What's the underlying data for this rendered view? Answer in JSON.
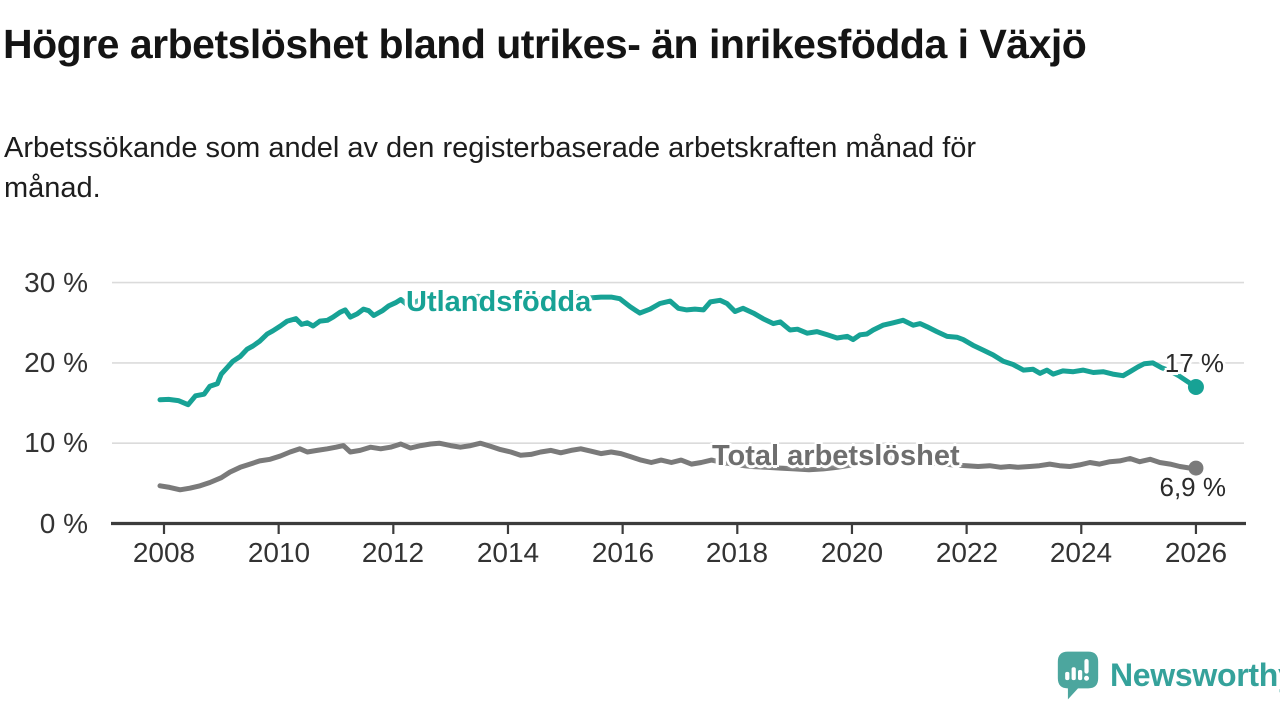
{
  "header": {
    "title": "Högre arbetslöshet bland utrikes- än inrikesfödda i Växjö",
    "subtitle": "Arbetssökande som andel av den registerbaserade arbetskraften månad för\nmånad."
  },
  "chart_data": {
    "type": "line",
    "title": "Högre arbetslöshet bland utrikes- än inrikesfödda i Växjö",
    "subtitle": "Arbetssökande som andel av den registerbaserade arbetskraften månad för månad.",
    "xlabel": "",
    "ylabel": "",
    "ylim": [
      0,
      30
    ],
    "xlim": [
      2007.1,
      2026.85
    ],
    "grid": true,
    "legend_position": "inline-labels",
    "y_ticks": {
      "values": [
        30,
        20,
        10,
        0
      ],
      "labels": [
        "30 %",
        "20 %",
        "10 %",
        "0 %"
      ]
    },
    "x_ticks": {
      "values": [
        2008,
        2010,
        2012,
        2014,
        2016,
        2018,
        2020,
        2022,
        2024,
        2026
      ],
      "labels": [
        "2008",
        "2010",
        "2012",
        "2014",
        "2016",
        "2018",
        "2020",
        "2022",
        "2024",
        "2026"
      ]
    },
    "series": [
      {
        "name": "Utlandsfödda",
        "color": "#17A295",
        "end_label": "17 %",
        "end_value": 17,
        "points": [
          [
            2007.93,
            15.4
          ],
          [
            2008.08,
            15.45
          ],
          [
            2008.25,
            15.3
          ],
          [
            2008.42,
            14.8
          ],
          [
            2008.55,
            15.9
          ],
          [
            2008.7,
            16.1
          ],
          [
            2008.8,
            17.1
          ],
          [
            2008.93,
            17.4
          ],
          [
            2009.0,
            18.6
          ],
          [
            2009.1,
            19.4
          ],
          [
            2009.2,
            20.2
          ],
          [
            2009.33,
            20.8
          ],
          [
            2009.45,
            21.7
          ],
          [
            2009.55,
            22.1
          ],
          [
            2009.67,
            22.7
          ],
          [
            2009.8,
            23.6
          ],
          [
            2009.9,
            24.0
          ],
          [
            2010.03,
            24.6
          ],
          [
            2010.15,
            25.2
          ],
          [
            2010.3,
            25.5
          ],
          [
            2010.4,
            24.8
          ],
          [
            2010.5,
            25.0
          ],
          [
            2010.6,
            24.6
          ],
          [
            2010.72,
            25.2
          ],
          [
            2010.85,
            25.3
          ],
          [
            2010.95,
            25.7
          ],
          [
            2011.07,
            26.3
          ],
          [
            2011.16,
            26.6
          ],
          [
            2011.25,
            25.7
          ],
          [
            2011.37,
            26.1
          ],
          [
            2011.48,
            26.7
          ],
          [
            2011.57,
            26.5
          ],
          [
            2011.66,
            25.9
          ],
          [
            2011.81,
            26.5
          ],
          [
            2011.92,
            27.1
          ],
          [
            2012.04,
            27.5
          ],
          [
            2012.13,
            27.9
          ],
          [
            2012.25,
            27.2
          ],
          [
            2012.36,
            27.5
          ],
          [
            2012.48,
            27.9
          ],
          [
            2012.62,
            27.7
          ],
          [
            2012.78,
            28.0
          ],
          [
            2012.95,
            28.2
          ],
          [
            2013.12,
            27.9
          ],
          [
            2013.3,
            28.1
          ],
          [
            2013.48,
            28.3
          ],
          [
            2013.65,
            28.0
          ],
          [
            2013.82,
            28.2
          ],
          [
            2014.0,
            27.9
          ],
          [
            2014.18,
            28.1
          ],
          [
            2014.36,
            28.3
          ],
          [
            2014.54,
            28.0
          ],
          [
            2014.72,
            28.2
          ],
          [
            2014.9,
            28.0
          ],
          [
            2015.08,
            28.2
          ],
          [
            2015.26,
            28.3
          ],
          [
            2015.44,
            28.1
          ],
          [
            2015.62,
            28.2
          ],
          [
            2015.8,
            28.2
          ],
          [
            2015.95,
            28.0
          ],
          [
            2016.13,
            27.0
          ],
          [
            2016.3,
            26.2
          ],
          [
            2016.48,
            26.7
          ],
          [
            2016.65,
            27.4
          ],
          [
            2016.83,
            27.7
          ],
          [
            2016.97,
            26.8
          ],
          [
            2017.12,
            26.6
          ],
          [
            2017.26,
            26.7
          ],
          [
            2017.41,
            26.6
          ],
          [
            2017.53,
            27.6
          ],
          [
            2017.7,
            27.8
          ],
          [
            2017.82,
            27.4
          ],
          [
            2017.96,
            26.4
          ],
          [
            2018.1,
            26.8
          ],
          [
            2018.28,
            26.2
          ],
          [
            2018.45,
            25.5
          ],
          [
            2018.63,
            24.9
          ],
          [
            2018.75,
            25.1
          ],
          [
            2018.92,
            24.1
          ],
          [
            2019.05,
            24.2
          ],
          [
            2019.22,
            23.7
          ],
          [
            2019.39,
            23.9
          ],
          [
            2019.57,
            23.5
          ],
          [
            2019.74,
            23.1
          ],
          [
            2019.92,
            23.3
          ],
          [
            2020.02,
            22.9
          ],
          [
            2020.14,
            23.5
          ],
          [
            2020.26,
            23.6
          ],
          [
            2020.37,
            24.1
          ],
          [
            2020.54,
            24.7
          ],
          [
            2020.72,
            25.0
          ],
          [
            2020.89,
            25.3
          ],
          [
            2021.07,
            24.7
          ],
          [
            2021.19,
            24.9
          ],
          [
            2021.31,
            24.5
          ],
          [
            2021.48,
            23.9
          ],
          [
            2021.66,
            23.3
          ],
          [
            2021.83,
            23.2
          ],
          [
            2021.94,
            22.9
          ],
          [
            2022.11,
            22.2
          ],
          [
            2022.29,
            21.6
          ],
          [
            2022.46,
            21.0
          ],
          [
            2022.64,
            20.2
          ],
          [
            2022.81,
            19.8
          ],
          [
            2022.99,
            19.1
          ],
          [
            2023.16,
            19.2
          ],
          [
            2023.28,
            18.7
          ],
          [
            2023.4,
            19.1
          ],
          [
            2023.51,
            18.6
          ],
          [
            2023.68,
            19.0
          ],
          [
            2023.86,
            18.9
          ],
          [
            2024.03,
            19.1
          ],
          [
            2024.21,
            18.8
          ],
          [
            2024.38,
            18.9
          ],
          [
            2024.55,
            18.6
          ],
          [
            2024.73,
            18.4
          ],
          [
            2024.85,
            18.9
          ],
          [
            2024.99,
            19.5
          ],
          [
            2025.1,
            19.9
          ],
          [
            2025.25,
            20.0
          ],
          [
            2025.4,
            19.4
          ],
          [
            2025.55,
            19.0
          ],
          [
            2025.7,
            18.4
          ],
          [
            2025.85,
            17.7
          ],
          [
            2026.0,
            17.0
          ]
        ]
      },
      {
        "name": "Total arbetslöshet",
        "color": "#7A7A7A",
        "end_label": "6,9 %",
        "end_value": 6.9,
        "points": [
          [
            2007.93,
            4.7
          ],
          [
            2008.1,
            4.5
          ],
          [
            2008.28,
            4.2
          ],
          [
            2008.45,
            4.4
          ],
          [
            2008.63,
            4.7
          ],
          [
            2008.8,
            5.1
          ],
          [
            2009.0,
            5.7
          ],
          [
            2009.15,
            6.4
          ],
          [
            2009.33,
            7.0
          ],
          [
            2009.5,
            7.4
          ],
          [
            2009.67,
            7.8
          ],
          [
            2009.85,
            8.0
          ],
          [
            2010.03,
            8.4
          ],
          [
            2010.2,
            8.9
          ],
          [
            2010.37,
            9.3
          ],
          [
            2010.5,
            8.9
          ],
          [
            2010.67,
            9.1
          ],
          [
            2010.85,
            9.3
          ],
          [
            2011.0,
            9.5
          ],
          [
            2011.13,
            9.7
          ],
          [
            2011.25,
            8.9
          ],
          [
            2011.42,
            9.1
          ],
          [
            2011.6,
            9.5
          ],
          [
            2011.78,
            9.3
          ],
          [
            2011.95,
            9.5
          ],
          [
            2012.13,
            9.9
          ],
          [
            2012.3,
            9.4
          ],
          [
            2012.48,
            9.7
          ],
          [
            2012.65,
            9.9
          ],
          [
            2012.8,
            10.0
          ],
          [
            2013.0,
            9.7
          ],
          [
            2013.17,
            9.5
          ],
          [
            2013.35,
            9.7
          ],
          [
            2013.52,
            10.0
          ],
          [
            2013.7,
            9.6
          ],
          [
            2013.87,
            9.2
          ],
          [
            2014.05,
            8.9
          ],
          [
            2014.22,
            8.5
          ],
          [
            2014.4,
            8.6
          ],
          [
            2014.57,
            8.9
          ],
          [
            2014.75,
            9.1
          ],
          [
            2014.92,
            8.8
          ],
          [
            2015.1,
            9.1
          ],
          [
            2015.27,
            9.3
          ],
          [
            2015.45,
            9.0
          ],
          [
            2015.62,
            8.7
          ],
          [
            2015.8,
            8.9
          ],
          [
            2015.97,
            8.7
          ],
          [
            2016.15,
            8.3
          ],
          [
            2016.32,
            7.9
          ],
          [
            2016.5,
            7.6
          ],
          [
            2016.67,
            7.9
          ],
          [
            2016.85,
            7.6
          ],
          [
            2017.02,
            7.9
          ],
          [
            2017.2,
            7.4
          ],
          [
            2017.37,
            7.6
          ],
          [
            2017.55,
            7.9
          ],
          [
            2017.75,
            7.6
          ],
          [
            2018.0,
            7.3
          ],
          [
            2018.25,
            7.1
          ],
          [
            2018.5,
            7.0
          ],
          [
            2018.75,
            6.9
          ],
          [
            2019.0,
            6.8
          ],
          [
            2019.25,
            6.7
          ],
          [
            2019.5,
            6.8
          ],
          [
            2019.75,
            7.0
          ],
          [
            2020.0,
            7.3
          ],
          [
            2020.25,
            8.0
          ],
          [
            2020.45,
            8.3
          ],
          [
            2020.7,
            8.1
          ],
          [
            2021.0,
            7.9
          ],
          [
            2021.25,
            7.7
          ],
          [
            2021.5,
            7.5
          ],
          [
            2021.75,
            7.3
          ],
          [
            2022.0,
            7.2
          ],
          [
            2022.2,
            7.1
          ],
          [
            2022.4,
            7.2
          ],
          [
            2022.6,
            7.0
          ],
          [
            2022.75,
            7.1
          ],
          [
            2022.9,
            7.0
          ],
          [
            2023.1,
            7.1
          ],
          [
            2023.27,
            7.2
          ],
          [
            2023.45,
            7.4
          ],
          [
            2023.62,
            7.2
          ],
          [
            2023.8,
            7.1
          ],
          [
            2023.97,
            7.3
          ],
          [
            2024.15,
            7.6
          ],
          [
            2024.32,
            7.4
          ],
          [
            2024.5,
            7.7
          ],
          [
            2024.67,
            7.8
          ],
          [
            2024.85,
            8.1
          ],
          [
            2025.02,
            7.7
          ],
          [
            2025.2,
            8.0
          ],
          [
            2025.37,
            7.6
          ],
          [
            2025.55,
            7.4
          ],
          [
            2025.72,
            7.1
          ],
          [
            2025.9,
            6.9
          ],
          [
            2026.0,
            6.9
          ]
        ]
      }
    ],
    "colors": {
      "grid": "#DBDBDB",
      "axis": "#3C3C3C",
      "tick_text": "#333333"
    }
  },
  "footer": {
    "brand": "Newsworthy",
    "brand_icon": "newsworthy-speech-bubble-bar-chart-icon",
    "brand_color": "#4CA69E",
    "brand_text_color": "#35A29B"
  }
}
